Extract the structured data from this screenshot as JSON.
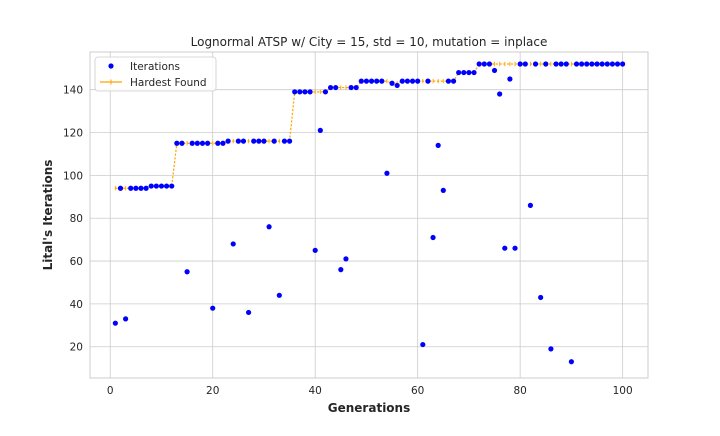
{
  "chart_data": {
    "type": "scatter",
    "title": "Lognormal ATSP w/ City = 15, std = 10, mutation = inplace",
    "xlabel": "Generations",
    "ylabel": "Lital's Iterations",
    "xlim": [
      -3.95,
      104.95
    ],
    "ylim": [
      5.4,
      157.6
    ],
    "xticks": [
      0,
      20,
      40,
      60,
      80,
      100
    ],
    "yticks": [
      20,
      40,
      60,
      80,
      100,
      120,
      140
    ],
    "grid": true,
    "legend_position": "top-left",
    "series": [
      {
        "name": "Iterations",
        "kind": "scatter",
        "color": "#0000ff",
        "x": [
          1,
          2,
          3,
          4,
          5,
          6,
          7,
          8,
          9,
          10,
          11,
          12,
          13,
          14,
          15,
          16,
          17,
          18,
          19,
          20,
          21,
          22,
          23,
          24,
          25,
          26,
          27,
          28,
          29,
          30,
          31,
          32,
          33,
          34,
          35,
          36,
          37,
          38,
          39,
          40,
          41,
          42,
          43,
          44,
          45,
          46,
          47,
          48,
          49,
          50,
          51,
          52,
          53,
          54,
          55,
          56,
          57,
          58,
          59,
          60,
          61,
          62,
          63,
          64,
          65,
          66,
          67,
          68,
          69,
          70,
          71,
          72,
          73,
          74,
          75,
          76,
          77,
          78,
          79,
          80,
          81,
          82,
          83,
          84,
          85,
          86,
          87,
          88,
          89,
          90,
          91,
          92,
          93,
          94,
          95,
          96,
          97,
          98,
          99,
          100
        ],
        "y": [
          31,
          94,
          33,
          94,
          94,
          94,
          94,
          95,
          95,
          95,
          95,
          95,
          115,
          115,
          55,
          115,
          115,
          115,
          115,
          38,
          115,
          115,
          116,
          68,
          116,
          116,
          36,
          116,
          116,
          116,
          76,
          116,
          44,
          116,
          116,
          139,
          139,
          139,
          139,
          65,
          121,
          139,
          141,
          141,
          56,
          61,
          141,
          141,
          144,
          144,
          144,
          144,
          144,
          101,
          143,
          142,
          144,
          144,
          144,
          144,
          21,
          144,
          71,
          114,
          93,
          144,
          144,
          148,
          148,
          148,
          148,
          152,
          152,
          152,
          149,
          138,
          66,
          145,
          66,
          152,
          152,
          86,
          152,
          43,
          152,
          19,
          152,
          152,
          152,
          13,
          152,
          152,
          152,
          152,
          152,
          152,
          152,
          152,
          152,
          152
        ]
      },
      {
        "name": "Hardest Found",
        "kind": "line",
        "color": "#ffa500",
        "x": [
          1,
          2,
          3,
          4,
          5,
          6,
          7,
          8,
          9,
          10,
          11,
          12,
          13,
          14,
          15,
          16,
          17,
          18,
          19,
          20,
          21,
          22,
          23,
          24,
          25,
          26,
          27,
          28,
          29,
          30,
          31,
          32,
          33,
          34,
          35,
          36,
          37,
          38,
          39,
          40,
          41,
          42,
          43,
          44,
          45,
          46,
          47,
          48,
          49,
          50,
          51,
          52,
          53,
          54,
          55,
          56,
          57,
          58,
          59,
          60,
          61,
          62,
          63,
          64,
          65,
          66,
          67,
          68,
          69,
          70,
          71,
          72,
          73,
          74,
          75,
          76,
          77,
          78,
          79,
          80,
          81,
          82,
          83,
          84,
          85,
          86,
          87,
          88,
          89,
          90,
          91,
          92,
          93,
          94,
          95,
          96,
          97,
          98,
          99,
          100
        ],
        "y": [
          94,
          94,
          94,
          94,
          94,
          94,
          94,
          95,
          95,
          95,
          95,
          95,
          115,
          115,
          115,
          115,
          115,
          115,
          115,
          115,
          115,
          115,
          116,
          116,
          116,
          116,
          116,
          116,
          116,
          116,
          116,
          116,
          116,
          116,
          116,
          139,
          139,
          139,
          139,
          139,
          139,
          139,
          141,
          141,
          141,
          141,
          141,
          141,
          144,
          144,
          144,
          144,
          144,
          144,
          143,
          143,
          144,
          144,
          144,
          144,
          144,
          144,
          144,
          144,
          144,
          144,
          144,
          148,
          148,
          148,
          148,
          152,
          152,
          152,
          152,
          152,
          152,
          152,
          152,
          152,
          152,
          152,
          152,
          152,
          152,
          152,
          152,
          152,
          152,
          152,
          152,
          152,
          152,
          152,
          152,
          152,
          152,
          152,
          152,
          152
        ]
      }
    ]
  }
}
